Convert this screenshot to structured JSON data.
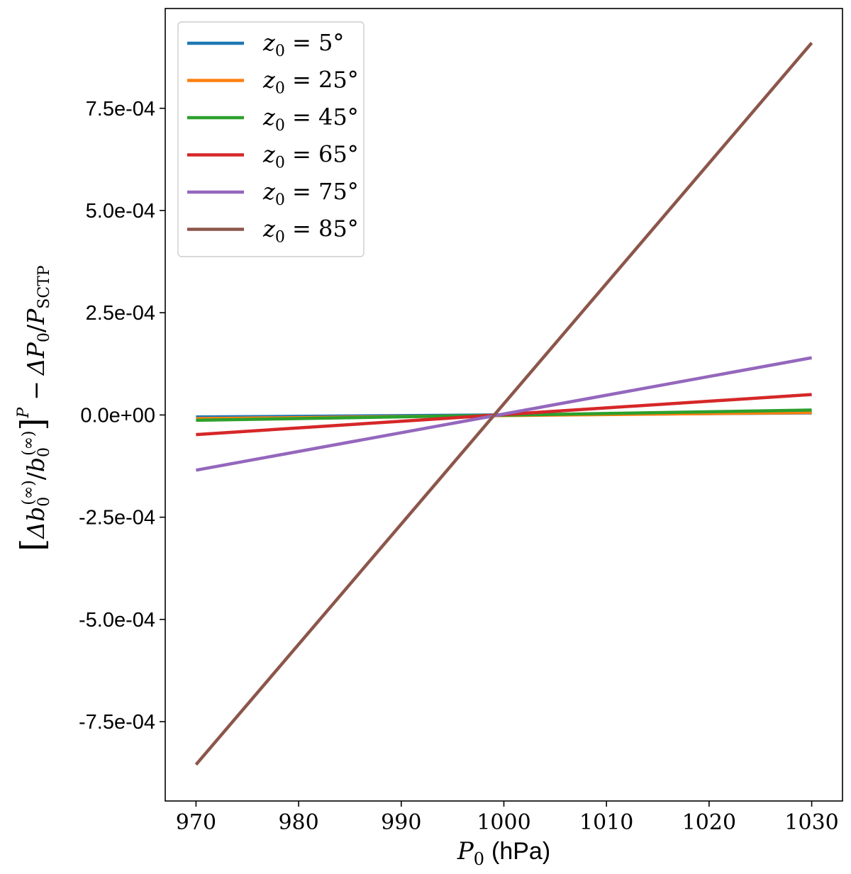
{
  "chart_data": {
    "type": "line",
    "x": [
      970,
      1030
    ],
    "xlim": [
      967,
      1033
    ],
    "ylim": [
      -0.000944,
      0.000994
    ],
    "xticks": [
      970,
      980,
      990,
      1000,
      1010,
      1020,
      1030
    ],
    "xtick_labels": [
      "970",
      "980",
      "990",
      "1000",
      "1010",
      "1020",
      "1030"
    ],
    "yticks": [
      -0.00075,
      -0.0005,
      -0.00025,
      0,
      0.00025,
      0.0005,
      0.00075
    ],
    "ytick_labels": [
      "-7.5e-04",
      "-5.0e-04",
      "-2.5e-04",
      "0.0e+00",
      "2.5e-04",
      "5.0e-04",
      "7.5e-04"
    ],
    "xlabel": {
      "symbol": "P",
      "sub": "0",
      "unit": "(hPa)"
    },
    "ylabel": {
      "delta_b": "Δb",
      "sub0": "0",
      "sup_inf": "(∞)",
      "slash": "/",
      "b": "b",
      "sup_p": "P",
      "minus": "−",
      "delta_p": "ΔP",
      "p_sctp": "P",
      "sub_sctp": "SCTP"
    },
    "legend": {
      "placement": "top-left",
      "prefix": "z",
      "sub": "0",
      "eq": " = "
    },
    "grid": false,
    "series": [
      {
        "name": "5°",
        "color": "#1f77b4",
        "values": [
          -5e-06,
          5e-06
        ]
      },
      {
        "name": "25°",
        "color": "#ff7f0e",
        "values": [
          -9e-06,
          6e-06
        ]
      },
      {
        "name": "45°",
        "color": "#2ca02c",
        "values": [
          -1.3e-05,
          1.2e-05
        ]
      },
      {
        "name": "65°",
        "color": "#d62728",
        "values": [
          -4.8e-05,
          5e-05
        ]
      },
      {
        "name": "75°",
        "color": "#9467bd",
        "values": [
          -0.000135,
          0.00014
        ]
      },
      {
        "name": "85°",
        "color": "#8c564b",
        "values": [
          -0.000855,
          0.00091
        ]
      }
    ]
  }
}
